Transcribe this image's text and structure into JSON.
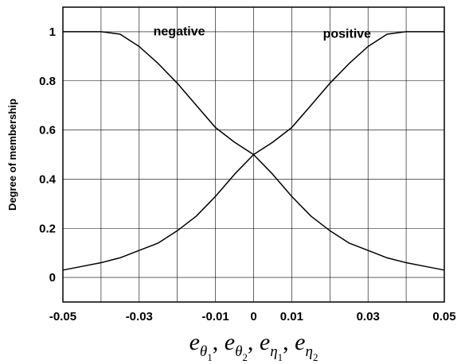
{
  "chart_data": {
    "type": "line",
    "title": "",
    "ylabel": "Degree of membership",
    "xlabel": "e_θ1, e_θ2, e_η1, e_η2",
    "xlabel_parts": [
      {
        "base": "e",
        "sub": "θ",
        "subsub": "1"
      },
      {
        "base": "e",
        "sub": "θ",
        "subsub": "2"
      },
      {
        "base": "e",
        "sub": "η",
        "subsub": "1"
      },
      {
        "base": "e",
        "sub": "η",
        "subsub": "2"
      }
    ],
    "xlim": [
      -0.05,
      0.05
    ],
    "ylim": [
      -0.1,
      1.1
    ],
    "grid": true,
    "x_ticks": [
      -0.05,
      -0.03,
      -0.01,
      0,
      0.01,
      0.03,
      0.05
    ],
    "x_tick_labels": [
      "-0.05",
      "-0.03",
      "-0.01",
      "0",
      "0.01",
      "0.03",
      "0.05"
    ],
    "x_gridlines": [
      -0.05,
      -0.04,
      -0.03,
      -0.02,
      -0.01,
      0,
      0.01,
      0.02,
      0.03,
      0.04,
      0.05
    ],
    "y_ticks": [
      0,
      0.2,
      0.4,
      0.6,
      0.8,
      1
    ],
    "y_tick_labels": [
      "0",
      "0.2",
      "0.4",
      "0.6",
      "0.8",
      "1"
    ],
    "annotations": [
      {
        "text": "negative",
        "x": -0.0195,
        "y": 0.985
      },
      {
        "text": "positive",
        "x": 0.0245,
        "y": 0.975
      }
    ],
    "series": [
      {
        "x": [
          -0.05,
          -0.045,
          -0.04,
          -0.035,
          -0.03,
          -0.025,
          -0.02,
          -0.015,
          -0.01,
          -0.005,
          0,
          0.005,
          0.01,
          0.015,
          0.02,
          0.025,
          0.03,
          0.035,
          0.04,
          0.045,
          0.05
        ],
        "y": [
          1,
          1,
          1,
          0.99,
          0.94,
          0.87,
          0.79,
          0.7,
          0.61,
          0.55,
          0.5,
          0.42,
          0.33,
          0.25,
          0.19,
          0.14,
          0.11,
          0.08,
          0.06,
          0.045,
          0.03
        ]
      },
      {
        "x": [
          -0.05,
          -0.045,
          -0.04,
          -0.035,
          -0.03,
          -0.025,
          -0.02,
          -0.015,
          -0.01,
          -0.005,
          0,
          0.005,
          0.01,
          0.015,
          0.02,
          0.025,
          0.03,
          0.035,
          0.04,
          0.045,
          0.05
        ],
        "y": [
          0.03,
          0.045,
          0.06,
          0.08,
          0.11,
          0.14,
          0.19,
          0.25,
          0.33,
          0.42,
          0.5,
          0.55,
          0.61,
          0.7,
          0.79,
          0.87,
          0.94,
          0.99,
          1,
          1,
          1
        ]
      }
    ]
  }
}
